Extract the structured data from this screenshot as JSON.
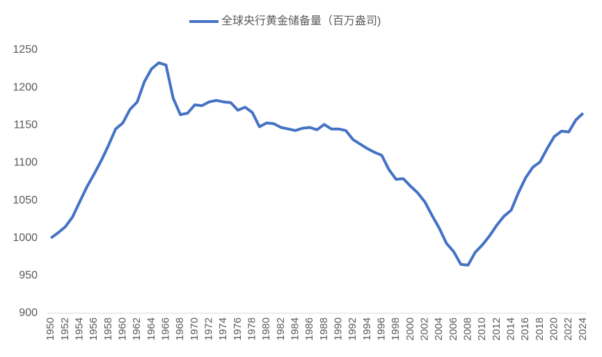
{
  "chart_data": {
    "type": "line",
    "categories": [
      1950,
      null,
      1952,
      null,
      1954,
      null,
      1956,
      null,
      1958,
      null,
      1960,
      null,
      1962,
      null,
      1964,
      null,
      1966,
      null,
      1968,
      null,
      1970,
      null,
      1972,
      null,
      1974,
      null,
      1976,
      null,
      1978,
      null,
      1980,
      null,
      1982,
      null,
      1984,
      null,
      1986,
      null,
      1988,
      null,
      1990,
      null,
      1992,
      null,
      1994,
      null,
      1996,
      null,
      1998,
      null,
      2000,
      null,
      2002,
      null,
      2004,
      null,
      2006,
      null,
      2008,
      null,
      2010,
      null,
      2012,
      null,
      2014,
      null,
      2016,
      null,
      2018,
      null,
      2020,
      null,
      2022,
      null,
      2024
    ],
    "series": [
      {
        "name": "全球央行黄金储备量（百万盎司)",
        "color": "#4472c4",
        "values": [
          1000,
          1007,
          1015,
          1028,
          1048,
          1068,
          1085,
          1103,
          1123,
          1145,
          1153,
          1171,
          1181,
          1208,
          1225,
          1233,
          1230,
          1186,
          1164,
          1166,
          1177,
          1176,
          1181,
          1183,
          1181,
          1180,
          1170,
          1174,
          1167,
          1148,
          1153,
          1152,
          1147,
          1145,
          1143,
          1146,
          1147,
          1144,
          1151,
          1145,
          1145,
          1143,
          1131,
          1125,
          1119,
          1114,
          1110,
          1091,
          1078,
          1079,
          1069,
          1060,
          1048,
          1030,
          1013,
          993,
          982,
          965,
          964,
          981,
          991,
          1003,
          1017,
          1029,
          1037,
          1060,
          1080,
          1094,
          1101,
          1119,
          1135,
          1142,
          1141,
          1157,
          1166
        ]
      }
    ],
    "ylim": [
      900,
      1250
    ],
    "yticks": [
      900,
      950,
      1000,
      1050,
      1100,
      1150,
      1200,
      1250
    ],
    "grid": false,
    "legend": "top"
  }
}
